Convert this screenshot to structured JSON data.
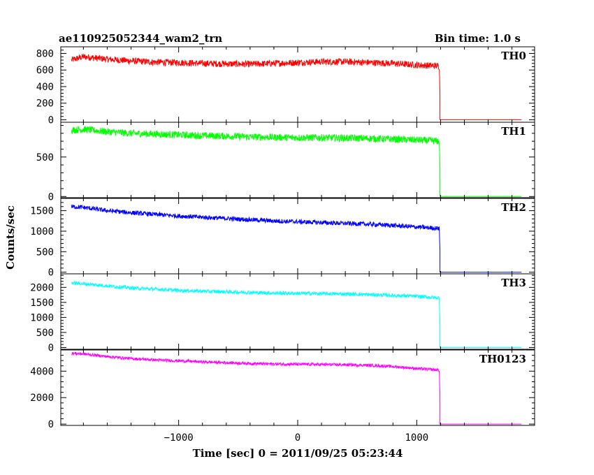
{
  "header": {
    "title": "ae110925052344_wam2_trn",
    "bin_time": "Bin time: 1.0 s"
  },
  "chart_data": {
    "type": "line",
    "title": "ae110925052344_wam2_trn",
    "xlabel": "Time [sec] 0 = 2011/09/25 05:23:44",
    "ylabel": "Counts/sec",
    "xlim": [
      -1990,
      1990
    ],
    "x_ticks": [
      -1000,
      0,
      1000
    ],
    "x_tick_labels": [
      "−1000",
      "0",
      "1000"
    ],
    "grid": false,
    "panels": [
      {
        "name": "TH0",
        "color": "#ff0000",
        "ylim": [
          -30,
          880
        ],
        "y_ticks": [
          0,
          200,
          400,
          600,
          800
        ],
        "y_tick_labels": [
          "0",
          "200",
          "400",
          "600",
          "800"
        ],
        "x": [
          -1900,
          -1800,
          -1600,
          -1400,
          -1200,
          -1000,
          -800,
          -600,
          -400,
          -200,
          0,
          200,
          400,
          600,
          800,
          1000,
          1180,
          1190,
          1200,
          1400,
          1600,
          1880
        ],
        "y": [
          720,
          760,
          730,
          710,
          695,
          690,
          680,
          675,
          670,
          680,
          690,
          700,
          700,
          690,
          680,
          660,
          650,
          640,
          0,
          0,
          0,
          0
        ],
        "noise": 40
      },
      {
        "name": "TH1",
        "color": "#00ff00",
        "ylim": [
          -15,
          940
        ],
        "y_ticks": [
          0,
          500
        ],
        "y_tick_labels": [
          "0",
          "500"
        ],
        "x": [
          -1900,
          -1800,
          -1600,
          -1400,
          -1200,
          -1000,
          -800,
          -600,
          -400,
          -200,
          0,
          200,
          400,
          600,
          800,
          1000,
          1180,
          1190,
          1200,
          1400,
          1600,
          1880
        ],
        "y": [
          840,
          850,
          820,
          800,
          790,
          780,
          770,
          765,
          755,
          750,
          745,
          745,
          740,
          735,
          725,
          715,
          700,
          690,
          0,
          0,
          0,
          0
        ],
        "noise": 45
      },
      {
        "name": "TH2",
        "color": "#0000ff",
        "ylim": [
          -40,
          1800
        ],
        "y_ticks": [
          0,
          500,
          1000,
          1500
        ],
        "y_tick_labels": [
          "0",
          "500",
          "1000",
          "1500"
        ],
        "x": [
          -1900,
          -1800,
          -1600,
          -1400,
          -1200,
          -1000,
          -800,
          -600,
          -400,
          -200,
          0,
          200,
          400,
          600,
          800,
          1000,
          1180,
          1190,
          1200,
          1400,
          1600,
          1880
        ],
        "y": [
          1600,
          1580,
          1500,
          1450,
          1410,
          1370,
          1340,
          1310,
          1280,
          1250,
          1230,
          1210,
          1190,
          1170,
          1140,
          1100,
          1070,
          1060,
          0,
          0,
          0,
          0
        ],
        "noise": 55
      },
      {
        "name": "TH3",
        "color": "#00ffff",
        "ylim": [
          -60,
          2450
        ],
        "y_ticks": [
          0,
          500,
          1000,
          1500,
          2000
        ],
        "y_tick_labels": [
          "0",
          "500",
          "1000",
          "1500",
          "2000"
        ],
        "x": [
          -1900,
          -1800,
          -1600,
          -1400,
          -1200,
          -1000,
          -800,
          -600,
          -400,
          -200,
          0,
          200,
          400,
          600,
          800,
          1000,
          1180,
          1190,
          1200,
          1400,
          1600,
          1880
        ],
        "y": [
          2150,
          2120,
          2050,
          1980,
          1940,
          1900,
          1870,
          1850,
          1830,
          1810,
          1800,
          1790,
          1780,
          1760,
          1730,
          1700,
          1650,
          1640,
          0,
          0,
          0,
          0
        ],
        "noise": 60
      },
      {
        "name": "TH0123",
        "color": "#ff00ff",
        "ylim": [
          -100,
          5600
        ],
        "y_ticks": [
          0,
          2000,
          4000
        ],
        "y_tick_labels": [
          "0",
          "2000",
          "4000"
        ],
        "x": [
          -1900,
          -1800,
          -1600,
          -1400,
          -1200,
          -1000,
          -800,
          -600,
          -400,
          -200,
          0,
          200,
          400,
          600,
          800,
          1000,
          1180,
          1190,
          1200,
          1400,
          1600,
          1880
        ],
        "y": [
          5350,
          5300,
          5100,
          4950,
          4850,
          4780,
          4700,
          4640,
          4580,
          4540,
          4520,
          4500,
          4480,
          4440,
          4350,
          4200,
          4080,
          4050,
          0,
          0,
          0,
          0
        ],
        "noise": 110
      }
    ]
  }
}
